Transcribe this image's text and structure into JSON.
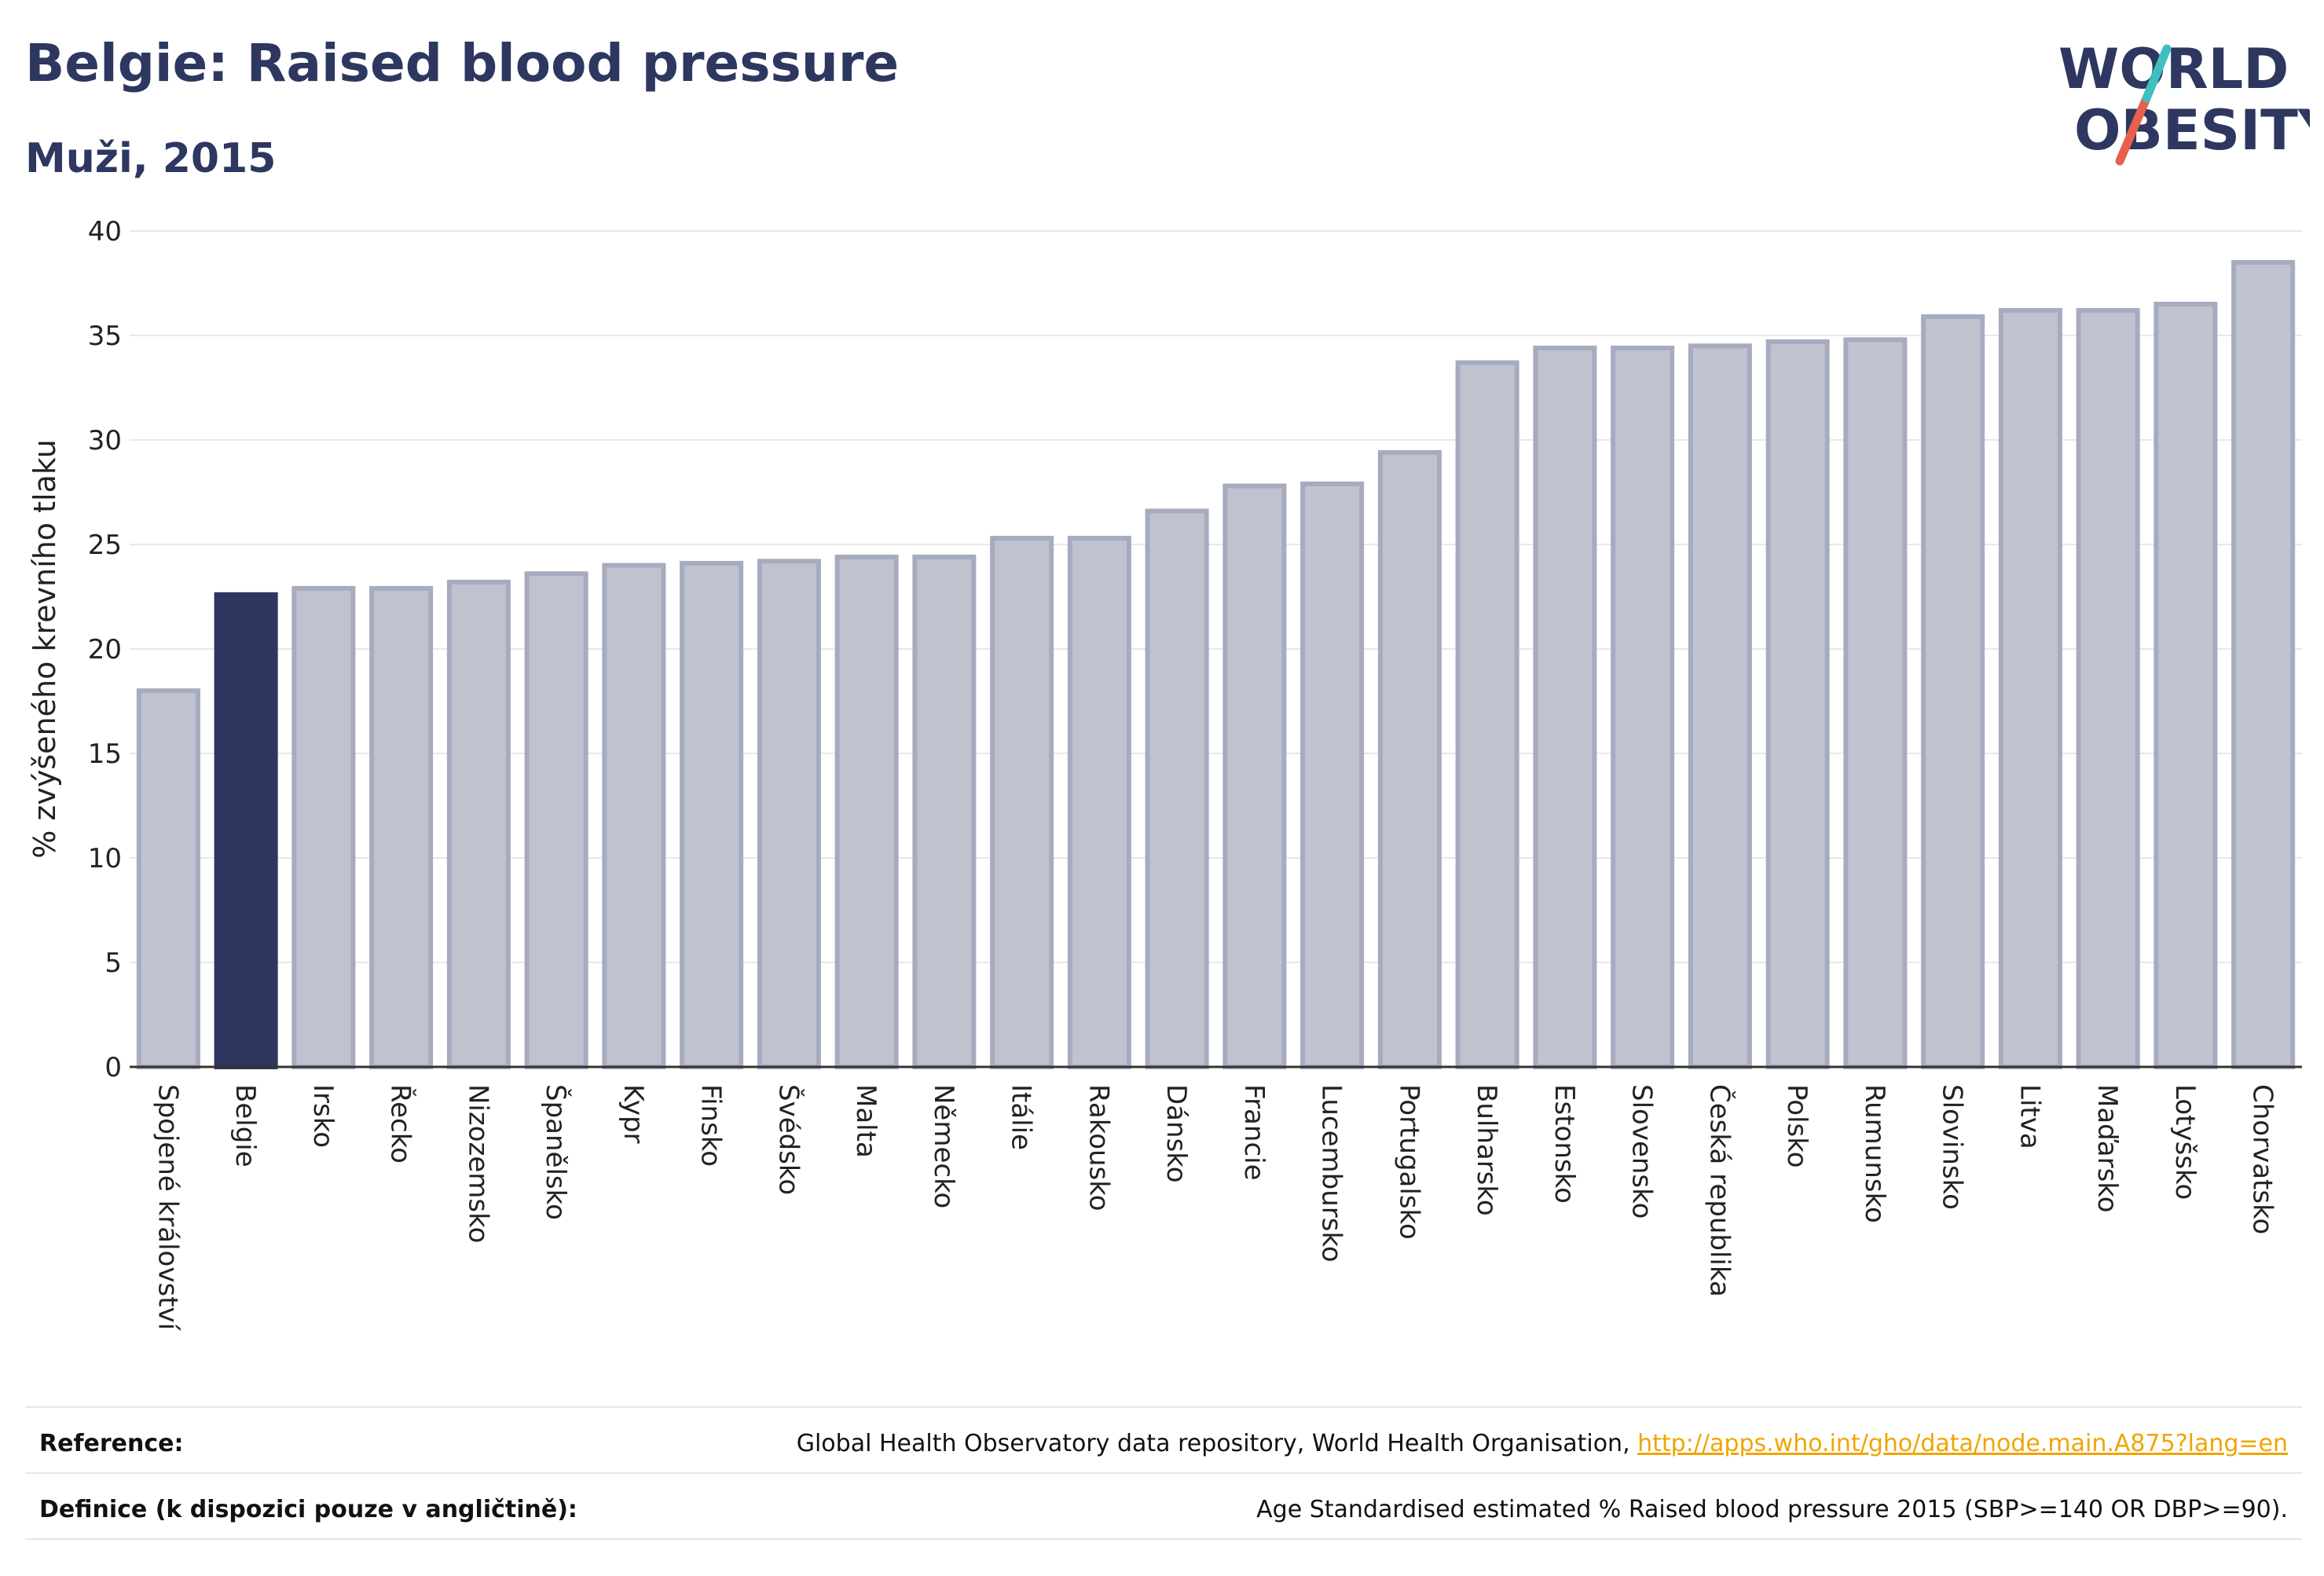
{
  "header": {
    "title": "Belgie: Raised blood pressure",
    "subtitle": "Muži, 2015"
  },
  "logo": {
    "line1": "WORLD",
    "line2": "OBESITY",
    "slash_colors": [
      "#e8604c",
      "#3fbfbf"
    ],
    "text_color": "#2d3760"
  },
  "chart_data": {
    "type": "bar",
    "title": "Belgie: Raised blood pressure",
    "subtitle": "Muži, 2015",
    "xlabel": "",
    "ylabel": "% zvýšeného krevního tlaku",
    "ylim": [
      0,
      40
    ],
    "yticks": [
      0,
      5,
      10,
      15,
      20,
      25,
      30,
      35,
      40
    ],
    "grid": true,
    "highlight": "Belgie",
    "colors": {
      "bar": "#c0c3cf",
      "bar_edge": "#a7abbf",
      "highlight": "#2d3760"
    },
    "categories": [
      "Spojené království",
      "Belgie",
      "Irsko",
      "Řecko",
      "Nizozemsko",
      "Španělsko",
      "Kypr",
      "Finsko",
      "Švédsko",
      "Malta",
      "Německo",
      "Itálie",
      "Rakousko",
      "Dánsko",
      "Francie",
      "Lucembursko",
      "Portugalsko",
      "Bulharsko",
      "Estonsko",
      "Slovensko",
      "Česká republika",
      "Polsko",
      "Rumunsko",
      "Slovinsko",
      "Litva",
      "Maďarsko",
      "Lotyšsko",
      "Chorvatsko"
    ],
    "values": [
      18.0,
      22.6,
      22.9,
      22.9,
      23.2,
      23.6,
      24.0,
      24.1,
      24.2,
      24.4,
      24.4,
      25.3,
      25.3,
      26.6,
      27.8,
      27.9,
      29.4,
      33.7,
      34.4,
      34.4,
      34.5,
      34.7,
      34.8,
      35.9,
      36.2,
      36.2,
      36.5,
      38.5
    ]
  },
  "footer": {
    "reference_label": "Reference:",
    "reference_text": "Global Health Observatory data repository, World Health Organisation, ",
    "reference_link": "http://apps.who.int/gho/data/node.main.A875?lang=en",
    "definition_label": "Definice (k dispozici pouze v angličtině):",
    "definition_text": "Age Standardised estimated % Raised blood pressure 2015 (SBP>=140 OR DBP>=90)."
  }
}
